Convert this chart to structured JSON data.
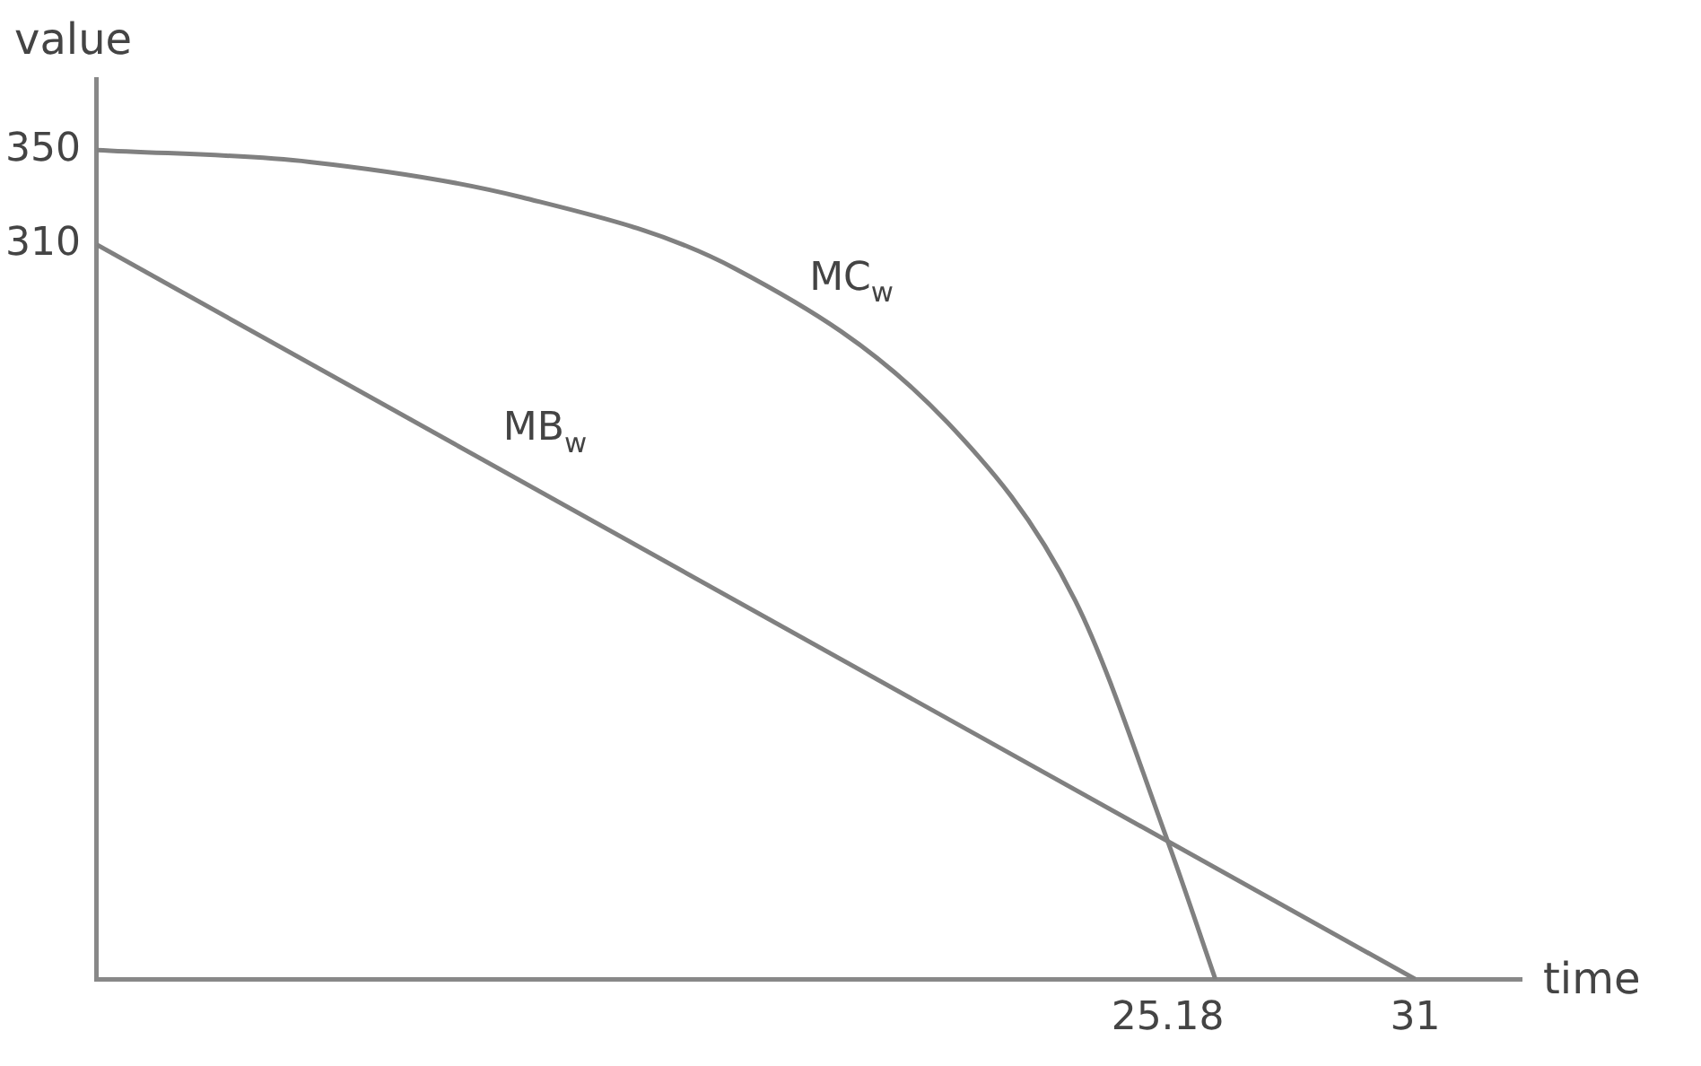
{
  "chart_data": {
    "type": "line",
    "xlabel": "time",
    "ylabel": "value",
    "xlim": [
      0,
      33.5
    ],
    "ylim": [
      0,
      380
    ],
    "xticks": [
      25.18,
      31
    ],
    "yticks": [
      310,
      350
    ],
    "grid": false,
    "legend": false,
    "marker": "none",
    "line_style": "solid",
    "series": [
      {
        "name": "MC$_{w}$",
        "color": "#808080",
        "x": [
          0,
          5,
          10,
          15,
          20,
          23,
          25.18,
          26.3
        ],
        "values": [
          350,
          345,
          330,
          300,
          235,
          160,
          58.2,
          0
        ]
      },
      {
        "name": "MB$_{w}$",
        "color": "#808080",
        "x": [
          0,
          31
        ],
        "values": [
          310,
          0
        ]
      }
    ]
  }
}
